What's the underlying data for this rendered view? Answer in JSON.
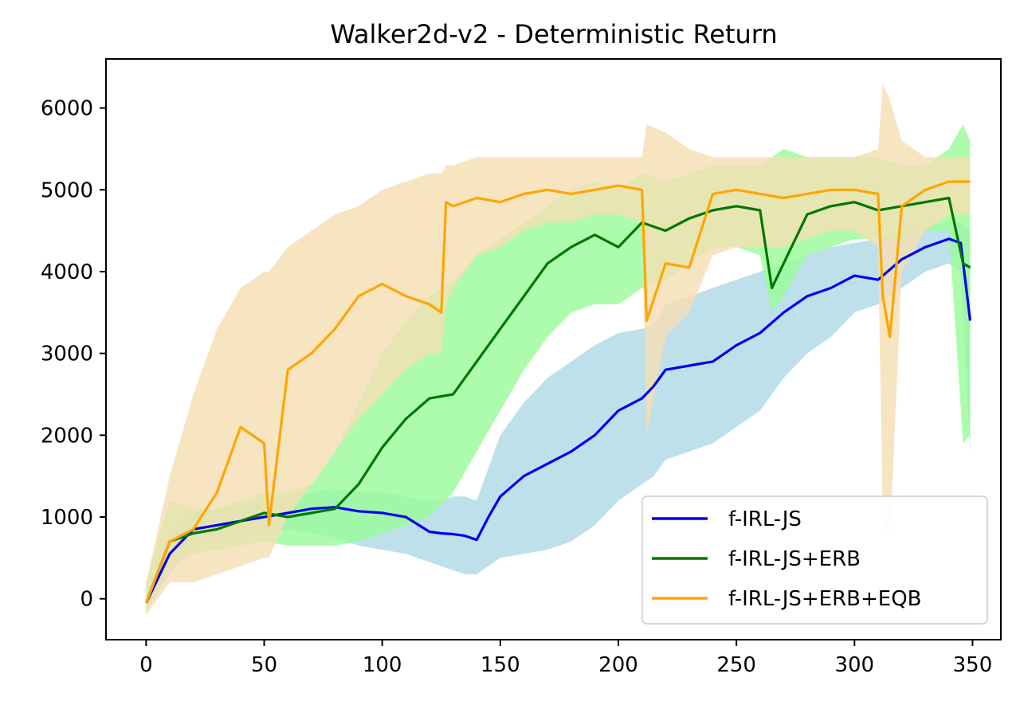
{
  "chart_data": {
    "type": "line",
    "title": "Walker2d-v2 - Deterministic Return",
    "xlabel": "",
    "ylabel": "",
    "xlim": [
      -17,
      362
    ],
    "ylim": [
      -500,
      6600
    ],
    "xticks": [
      0,
      50,
      100,
      150,
      200,
      250,
      300,
      350
    ],
    "yticks": [
      0,
      1000,
      2000,
      3000,
      4000,
      5000,
      6000
    ],
    "grid": false,
    "legend_position": "lower-right",
    "series": [
      {
        "name": "f-IRL-JS",
        "color": "#0000ee",
        "band_color": "#add8e6",
        "x": [
          0,
          10,
          20,
          30,
          40,
          50,
          60,
          70,
          80,
          90,
          100,
          110,
          120,
          125,
          130,
          135,
          140,
          145,
          150,
          160,
          170,
          180,
          190,
          200,
          210,
          215,
          220,
          230,
          240,
          250,
          260,
          270,
          280,
          290,
          300,
          310,
          320,
          330,
          340,
          345,
          349
        ],
        "values": [
          -50,
          550,
          850,
          900,
          950,
          1000,
          1050,
          1100,
          1120,
          1070,
          1050,
          1000,
          820,
          800,
          790,
          770,
          720,
          1000,
          1250,
          1500,
          1650,
          1800,
          2000,
          2300,
          2450,
          2600,
          2800,
          2850,
          2900,
          3100,
          3250,
          3500,
          3700,
          3800,
          3950,
          3900,
          4150,
          4300,
          4400,
          4350,
          3400
        ],
        "lower": [
          -150,
          300,
          650,
          700,
          750,
          800,
          850,
          800,
          750,
          650,
          600,
          550,
          450,
          400,
          350,
          300,
          300,
          400,
          500,
          550,
          600,
          700,
          900,
          1200,
          1400,
          1500,
          1700,
          1800,
          1900,
          2100,
          2300,
          2700,
          3000,
          3200,
          3500,
          3600,
          3800,
          4000,
          4100,
          4000,
          1800
        ],
        "upper": [
          100,
          800,
          1050,
          1100,
          1150,
          1200,
          1250,
          1300,
          1350,
          1300,
          1300,
          1250,
          1200,
          1200,
          1250,
          1250,
          1200,
          1600,
          2000,
          2400,
          2700,
          2900,
          3100,
          3250,
          3300,
          3350,
          3600,
          3700,
          3800,
          3900,
          4000,
          4100,
          4200,
          4300,
          4350,
          4400,
          4500,
          4550,
          4600,
          4600,
          4500
        ]
      },
      {
        "name": "f-IRL-JS+ERB",
        "color": "#007700",
        "band_color": "#98fb98",
        "x": [
          0,
          10,
          20,
          30,
          40,
          50,
          60,
          70,
          80,
          90,
          100,
          110,
          120,
          130,
          140,
          150,
          160,
          170,
          180,
          190,
          200,
          210,
          220,
          230,
          240,
          250,
          260,
          265,
          270,
          280,
          290,
          300,
          310,
          320,
          330,
          340,
          346,
          349
        ],
        "values": [
          -50,
          700,
          800,
          850,
          950,
          1050,
          1000,
          1050,
          1100,
          1400,
          1850,
          2200,
          2450,
          2500,
          2900,
          3300,
          3700,
          4100,
          4300,
          4450,
          4300,
          4600,
          4500,
          4650,
          4750,
          4800,
          4750,
          3800,
          4100,
          4700,
          4800,
          4850,
          4750,
          4800,
          4850,
          4900,
          4100,
          4050
        ],
        "lower": [
          -150,
          400,
          550,
          600,
          650,
          700,
          650,
          650,
          650,
          700,
          800,
          900,
          1000,
          1300,
          1800,
          2300,
          2800,
          3200,
          3500,
          3600,
          3600,
          3800,
          3900,
          4100,
          4300,
          4300,
          4200,
          3500,
          3700,
          4200,
          4300,
          4400,
          4400,
          4400,
          4500,
          4500,
          1900,
          2000
        ],
        "upper": [
          200,
          1200,
          1100,
          1100,
          1200,
          1300,
          1300,
          1400,
          1800,
          2400,
          3000,
          3400,
          3700,
          3900,
          4200,
          4400,
          4600,
          4800,
          5000,
          5100,
          5000,
          5200,
          5100,
          5200,
          5300,
          5300,
          5300,
          5400,
          5500,
          5400,
          5400,
          5400,
          5400,
          5300,
          5300,
          5500,
          5800,
          5600
        ]
      },
      {
        "name": "f-IRL-JS+ERB+EQB",
        "color": "#ffa500",
        "band_color": "#f5deb3",
        "x": [
          0,
          10,
          20,
          30,
          40,
          50,
          52,
          60,
          70,
          80,
          90,
          100,
          110,
          120,
          125,
          127,
          130,
          140,
          150,
          160,
          170,
          180,
          190,
          200,
          210,
          212,
          220,
          230,
          240,
          250,
          260,
          270,
          280,
          290,
          300,
          310,
          312,
          315,
          320,
          330,
          340,
          349
        ],
        "values": [
          -50,
          700,
          850,
          1300,
          2100,
          1900,
          900,
          2800,
          3000,
          3300,
          3700,
          3850,
          3700,
          3600,
          3500,
          4850,
          4800,
          4900,
          4850,
          4950,
          5000,
          4950,
          5000,
          5050,
          5000,
          3400,
          4100,
          4050,
          4950,
          5000,
          4950,
          4900,
          4950,
          5000,
          5000,
          4950,
          3700,
          3200,
          4800,
          5000,
          5100,
          5100
        ],
        "lower": [
          -200,
          200,
          200,
          300,
          400,
          500,
          500,
          1000,
          1400,
          1800,
          2200,
          2500,
          2800,
          3000,
          3000,
          3600,
          3800,
          4200,
          4300,
          4500,
          4600,
          4600,
          4700,
          4700,
          4600,
          2000,
          3200,
          3500,
          4200,
          4300,
          4300,
          4300,
          4400,
          4500,
          4500,
          4300,
          1000,
          700,
          4000,
          4500,
          4700,
          4700
        ],
        "upper": [
          200,
          1500,
          2500,
          3300,
          3800,
          4000,
          4000,
          4300,
          4500,
          4700,
          4800,
          5000,
          5100,
          5200,
          5200,
          5300,
          5300,
          5400,
          5400,
          5400,
          5400,
          5400,
          5400,
          5400,
          5400,
          5800,
          5700,
          5500,
          5400,
          5400,
          5400,
          5400,
          5400,
          5400,
          5400,
          5500,
          6300,
          6100,
          5600,
          5400,
          5400,
          5400
        ]
      }
    ]
  }
}
